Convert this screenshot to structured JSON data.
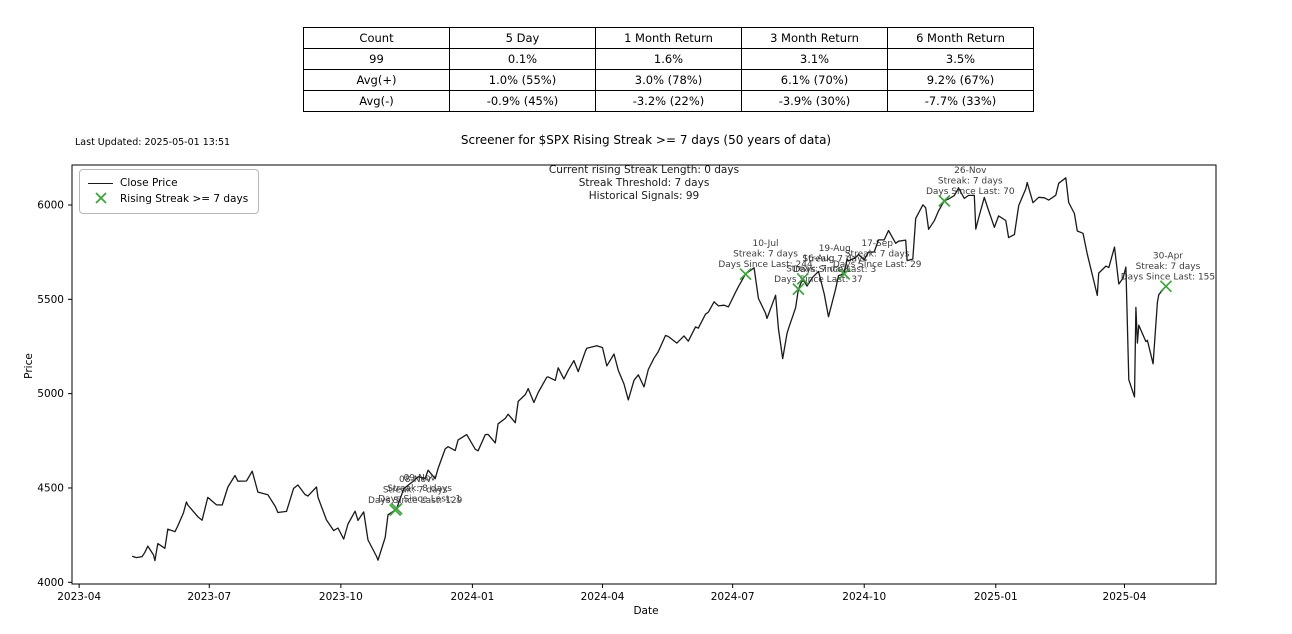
{
  "table": {
    "headers": [
      "Count",
      "5 Day",
      "1 Month Return",
      "3 Month Return",
      "6 Month Return"
    ],
    "rows": [
      [
        "99",
        "0.1%",
        "1.6%",
        "3.1%",
        "3.5%"
      ],
      [
        "Avg(+)",
        "1.0% (55%)",
        "3.0% (78%)",
        "6.1% (70%)",
        "9.2% (67%)"
      ],
      [
        "Avg(-)",
        "-0.9% (45%)",
        "-3.2% (22%)",
        "-3.9% (30%)",
        "-7.7% (33%)"
      ]
    ]
  },
  "last_updated": "Last Updated: 2025-05-01 13:51",
  "chart_data": {
    "type": "line",
    "title": "Screener for $SPX Rising Streak >= 7 days (50 years of data)",
    "xlabel": "Date",
    "ylabel": "Price",
    "info_lines": [
      "Current rising Streak Length: 0 days",
      "Streak Threshold: 7 days",
      "Historical Signals: 99"
    ],
    "legend": [
      {
        "type": "line",
        "label": "Close Price"
      },
      {
        "type": "x-marker",
        "label": "Rising Streak >= 7 days"
      }
    ],
    "legend_position": "upper-left",
    "grid": false,
    "x_ticks": [
      "2023-04",
      "2023-07",
      "2023-10",
      "2024-01",
      "2024-04",
      "2024-07",
      "2024-10",
      "2025-01",
      "2025-04"
    ],
    "y_ticks": [
      4000,
      4500,
      5000,
      5500,
      6000
    ],
    "xlim": [
      "2023-03-27",
      "2025-06-04"
    ],
    "ylim": [
      3991,
      6212
    ],
    "colors": {
      "line": "#1a1a1a",
      "marker": "#3fa23f",
      "annotation": "#3d3d3d"
    },
    "series": [
      {
        "name": "Close Price",
        "points": [
          [
            "2023-05-08",
            4138
          ],
          [
            "2023-05-11",
            4131
          ],
          [
            "2023-05-15",
            4136
          ],
          [
            "2023-05-17",
            4159
          ],
          [
            "2023-05-19",
            4192
          ],
          [
            "2023-05-23",
            4145
          ],
          [
            "2023-05-24",
            4115
          ],
          [
            "2023-05-26",
            4205
          ],
          [
            "2023-05-31",
            4180
          ],
          [
            "2023-06-02",
            4282
          ],
          [
            "2023-06-07",
            4268
          ],
          [
            "2023-06-09",
            4299
          ],
          [
            "2023-06-13",
            4369
          ],
          [
            "2023-06-15",
            4426
          ],
          [
            "2023-06-16",
            4410
          ],
          [
            "2023-06-23",
            4348
          ],
          [
            "2023-06-26",
            4329
          ],
          [
            "2023-06-30",
            4450
          ],
          [
            "2023-07-06",
            4411
          ],
          [
            "2023-07-10",
            4410
          ],
          [
            "2023-07-14",
            4505
          ],
          [
            "2023-07-19",
            4566
          ],
          [
            "2023-07-21",
            4536
          ],
          [
            "2023-07-27",
            4537
          ],
          [
            "2023-07-31",
            4589
          ],
          [
            "2023-08-04",
            4478
          ],
          [
            "2023-08-09",
            4468
          ],
          [
            "2023-08-11",
            4464
          ],
          [
            "2023-08-16",
            4404
          ],
          [
            "2023-08-18",
            4370
          ],
          [
            "2023-08-24",
            4376
          ],
          [
            "2023-08-29",
            4498
          ],
          [
            "2023-09-01",
            4516
          ],
          [
            "2023-09-06",
            4465
          ],
          [
            "2023-09-08",
            4457
          ],
          [
            "2023-09-14",
            4505
          ],
          [
            "2023-09-15",
            4450
          ],
          [
            "2023-09-21",
            4330
          ],
          [
            "2023-09-26",
            4274
          ],
          [
            "2023-09-29",
            4288
          ],
          [
            "2023-10-03",
            4229
          ],
          [
            "2023-10-06",
            4309
          ],
          [
            "2023-10-11",
            4377
          ],
          [
            "2023-10-13",
            4328
          ],
          [
            "2023-10-17",
            4373
          ],
          [
            "2023-10-20",
            4224
          ],
          [
            "2023-10-26",
            4137
          ],
          [
            "2023-10-27",
            4117
          ],
          [
            "2023-11-01",
            4238
          ],
          [
            "2023-11-03",
            4358
          ],
          [
            "2023-11-08",
            4383
          ],
          [
            "2023-11-09",
            4390
          ],
          [
            "2023-11-14",
            4496
          ],
          [
            "2023-11-17",
            4514
          ],
          [
            "2023-11-21",
            4538
          ],
          [
            "2023-11-24",
            4559
          ],
          [
            "2023-11-29",
            4551
          ],
          [
            "2023-12-01",
            4594
          ],
          [
            "2023-12-06",
            4549
          ],
          [
            "2023-12-08",
            4604
          ],
          [
            "2023-12-13",
            4707
          ],
          [
            "2023-12-15",
            4719
          ],
          [
            "2023-12-20",
            4698
          ],
          [
            "2023-12-22",
            4755
          ],
          [
            "2023-12-28",
            4783
          ],
          [
            "2024-01-03",
            4705
          ],
          [
            "2024-01-05",
            4697
          ],
          [
            "2024-01-10",
            4783
          ],
          [
            "2024-01-12",
            4784
          ],
          [
            "2024-01-17",
            4739
          ],
          [
            "2024-01-19",
            4840
          ],
          [
            "2024-01-24",
            4869
          ],
          [
            "2024-01-26",
            4891
          ],
          [
            "2024-01-31",
            4846
          ],
          [
            "2024-02-02",
            4959
          ],
          [
            "2024-02-07",
            4995
          ],
          [
            "2024-02-09",
            5027
          ],
          [
            "2024-02-13",
            4953
          ],
          [
            "2024-02-16",
            5006
          ],
          [
            "2024-02-22",
            5087
          ],
          [
            "2024-02-23",
            5089
          ],
          [
            "2024-02-28",
            5070
          ],
          [
            "2024-03-01",
            5137
          ],
          [
            "2024-03-05",
            5078
          ],
          [
            "2024-03-08",
            5124
          ],
          [
            "2024-03-12",
            5175
          ],
          [
            "2024-03-15",
            5117
          ],
          [
            "2024-03-20",
            5225
          ],
          [
            "2024-03-21",
            5241
          ],
          [
            "2024-03-28",
            5254
          ],
          [
            "2024-04-01",
            5244
          ],
          [
            "2024-04-04",
            5147
          ],
          [
            "2024-04-09",
            5210
          ],
          [
            "2024-04-12",
            5123
          ],
          [
            "2024-04-16",
            5051
          ],
          [
            "2024-04-19",
            4967
          ],
          [
            "2024-04-23",
            5071
          ],
          [
            "2024-04-26",
            5100
          ],
          [
            "2024-04-30",
            5036
          ],
          [
            "2024-05-03",
            5128
          ],
          [
            "2024-05-07",
            5188
          ],
          [
            "2024-05-10",
            5223
          ],
          [
            "2024-05-15",
            5308
          ],
          [
            "2024-05-17",
            5303
          ],
          [
            "2024-05-23",
            5268
          ],
          [
            "2024-05-28",
            5306
          ],
          [
            "2024-05-31",
            5278
          ],
          [
            "2024-06-05",
            5354
          ],
          [
            "2024-06-07",
            5347
          ],
          [
            "2024-06-12",
            5421
          ],
          [
            "2024-06-14",
            5432
          ],
          [
            "2024-06-18",
            5487
          ],
          [
            "2024-06-21",
            5465
          ],
          [
            "2024-06-25",
            5469
          ],
          [
            "2024-06-28",
            5460
          ],
          [
            "2024-07-03",
            5537
          ],
          [
            "2024-07-05",
            5567
          ],
          [
            "2024-07-10",
            5634
          ],
          [
            "2024-07-16",
            5667
          ],
          [
            "2024-07-19",
            5505
          ],
          [
            "2024-07-24",
            5427
          ],
          [
            "2024-07-25",
            5399
          ],
          [
            "2024-07-31",
            5522
          ],
          [
            "2024-08-02",
            5346
          ],
          [
            "2024-08-05",
            5186
          ],
          [
            "2024-08-08",
            5319
          ],
          [
            "2024-08-09",
            5344
          ],
          [
            "2024-08-14",
            5455
          ],
          [
            "2024-08-16",
            5554
          ],
          [
            "2024-08-19",
            5608
          ],
          [
            "2024-08-22",
            5570
          ],
          [
            "2024-08-26",
            5617
          ],
          [
            "2024-08-30",
            5648
          ],
          [
            "2024-09-03",
            5529
          ],
          [
            "2024-09-06",
            5408
          ],
          [
            "2024-09-11",
            5554
          ],
          [
            "2024-09-13",
            5626
          ],
          [
            "2024-09-17",
            5635
          ],
          [
            "2024-09-19",
            5714
          ],
          [
            "2024-09-20",
            5703
          ],
          [
            "2024-09-25",
            5722
          ],
          [
            "2024-09-27",
            5738
          ],
          [
            "2024-10-01",
            5709
          ],
          [
            "2024-10-04",
            5751
          ],
          [
            "2024-10-08",
            5751
          ],
          [
            "2024-10-11",
            5815
          ],
          [
            "2024-10-15",
            5815
          ],
          [
            "2024-10-18",
            5865
          ],
          [
            "2024-10-23",
            5797
          ],
          [
            "2024-10-25",
            5808
          ],
          [
            "2024-10-30",
            5814
          ],
          [
            "2024-10-31",
            5705
          ],
          [
            "2024-11-04",
            5713
          ],
          [
            "2024-11-06",
            5929
          ],
          [
            "2024-11-11",
            6001
          ],
          [
            "2024-11-13",
            5985
          ],
          [
            "2024-11-15",
            5871
          ],
          [
            "2024-11-19",
            5917
          ],
          [
            "2024-11-22",
            5969
          ],
          [
            "2024-11-26",
            6022
          ],
          [
            "2024-11-29",
            6032
          ],
          [
            "2024-12-03",
            6050
          ],
          [
            "2024-12-06",
            6090
          ],
          [
            "2024-12-10",
            6035
          ],
          [
            "2024-12-13",
            6051
          ],
          [
            "2024-12-17",
            6051
          ],
          [
            "2024-12-18",
            5872
          ],
          [
            "2024-12-20",
            5931
          ],
          [
            "2024-12-24",
            6040
          ],
          [
            "2024-12-27",
            5971
          ],
          [
            "2024-12-31",
            5882
          ],
          [
            "2025-01-03",
            5942
          ],
          [
            "2025-01-08",
            5918
          ],
          [
            "2025-01-10",
            5827
          ],
          [
            "2025-01-14",
            5843
          ],
          [
            "2025-01-17",
            5997
          ],
          [
            "2025-01-22",
            6086
          ],
          [
            "2025-01-23",
            6119
          ],
          [
            "2025-01-27",
            6012
          ],
          [
            "2025-01-31",
            6041
          ],
          [
            "2025-02-04",
            6038
          ],
          [
            "2025-02-07",
            6026
          ],
          [
            "2025-02-12",
            6052
          ],
          [
            "2025-02-14",
            6115
          ],
          [
            "2025-02-19",
            6144
          ],
          [
            "2025-02-21",
            6013
          ],
          [
            "2025-02-25",
            5955
          ],
          [
            "2025-02-27",
            5862
          ],
          [
            "2025-03-03",
            5850
          ],
          [
            "2025-03-06",
            5739
          ],
          [
            "2025-03-10",
            5615
          ],
          [
            "2025-03-13",
            5521
          ],
          [
            "2025-03-14",
            5639
          ],
          [
            "2025-03-19",
            5676
          ],
          [
            "2025-03-21",
            5668
          ],
          [
            "2025-03-25",
            5777
          ],
          [
            "2025-03-28",
            5581
          ],
          [
            "2025-03-31",
            5612
          ],
          [
            "2025-04-02",
            5671
          ],
          [
            "2025-04-04",
            5074
          ],
          [
            "2025-04-08",
            4983
          ],
          [
            "2025-04-09",
            5457
          ],
          [
            "2025-04-10",
            5268
          ],
          [
            "2025-04-11",
            5363
          ],
          [
            "2025-04-16",
            5276
          ],
          [
            "2025-04-17",
            5283
          ],
          [
            "2025-04-21",
            5158
          ],
          [
            "2025-04-24",
            5485
          ],
          [
            "2025-04-25",
            5525
          ],
          [
            "2025-04-29",
            5561
          ],
          [
            "2025-04-30",
            5569
          ]
        ]
      }
    ],
    "signals": [
      {
        "date": "2023-11-08",
        "price": 4383,
        "label": "08-Nov",
        "streak": "Streak: 7 days",
        "since": "Days Since Last: 129",
        "dx": 20
      },
      {
        "date": "2023-11-09",
        "price": 4390,
        "label": "09-Nov",
        "streak": "Streak: 8 days",
        "since": "Days Since Last: 1",
        "dx": 23
      },
      {
        "date": "2024-07-10",
        "price": 5634,
        "label": "10-Jul",
        "streak": "Streak: 7 days",
        "since": "Days Since Last: 244",
        "dx": 20
      },
      {
        "date": "2024-08-16",
        "price": 5554,
        "label": "16-Aug",
        "streak": "Streak: 7 days",
        "since": "Days Since Last: 37",
        "dx": 20
      },
      {
        "date": "2024-08-19",
        "price": 5608,
        "label": "19-Aug",
        "streak": "Streak: 7 days",
        "since": "Days Since Last: 3",
        "dx": 32
      },
      {
        "date": "2024-09-17",
        "price": 5635,
        "label": "17-Sep",
        "streak": "Streak: 7 days",
        "since": "Days Since Last: 29",
        "dx": 33
      },
      {
        "date": "2024-11-26",
        "price": 6022,
        "label": "26-Nov",
        "streak": "Streak: 7 days",
        "since": "Days Since Last: 70",
        "dx": 26
      },
      {
        "date": "2025-04-30",
        "price": 5569,
        "label": "30-Apr",
        "streak": "Streak: 7 days",
        "since": "Days Since Last: 155",
        "dx": 2
      }
    ]
  }
}
